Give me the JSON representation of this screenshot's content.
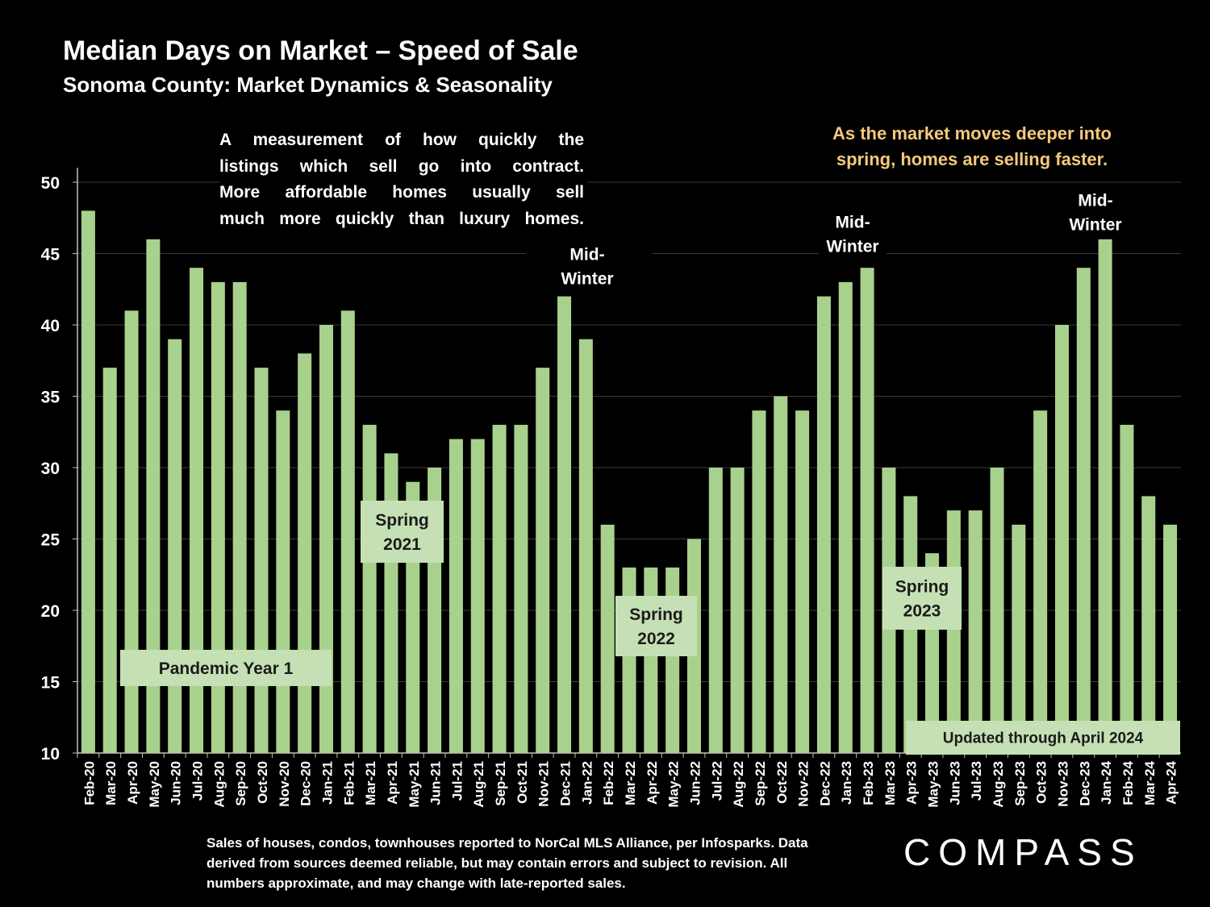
{
  "header": {
    "title": "Median Days on Market – Speed of Sale",
    "subtitle": "Sonoma County: Market Dynamics & Seasonality"
  },
  "description_lines": [
    "A measurement of how quickly the",
    "listings which sell go into contract.",
    "More affordable homes usually sell",
    "much more quickly than luxury homes."
  ],
  "note_lines": [
    "As the market moves deeper into",
    "spring, homes are selling faster."
  ],
  "footnote_lines": [
    "Sales of houses, condos, townhouses reported to NorCal MLS Alliance, per Infosparks. Data",
    "derived from sources deemed reliable, but may contain errors and subject to revision. All",
    "numbers approximate, and may change with late-reported sales."
  ],
  "logo": "COMPASS",
  "colors": {
    "bar": "#a9d18e",
    "label_box": "#c5e0b4",
    "note": "#f5c97a",
    "background": "#000000"
  },
  "chart_data": {
    "type": "bar",
    "title": "Median Days on Market – Speed of Sale",
    "ylim": [
      10,
      50
    ],
    "yticks": [
      10,
      15,
      20,
      25,
      30,
      35,
      40,
      45,
      50
    ],
    "grid": true,
    "categories": [
      "Feb-20",
      "Mar-20",
      "Apr-20",
      "May-20",
      "Jun-20",
      "Jul-20",
      "Aug-20",
      "Sep-20",
      "Oct-20",
      "Nov-20",
      "Dec-20",
      "Jan-21",
      "Feb-21",
      "Mar-21",
      "Apr-21",
      "May-21",
      "Jun-21",
      "Jul-21",
      "Aug-21",
      "Sep-21",
      "Oct-21",
      "Nov-21",
      "Dec-21",
      "Jan-22",
      "Feb-22",
      "Mar-22",
      "Apr-22",
      "May-22",
      "Jun-22",
      "Jul-22",
      "Aug-22",
      "Sep-22",
      "Oct-22",
      "Nov-22",
      "Dec-22",
      "Jan-23",
      "Feb-23",
      "Mar-23",
      "Apr-23",
      "May-23",
      "Jun-23",
      "Jul-23",
      "Aug-23",
      "Sep-23",
      "Oct-23",
      "Nov-23",
      "Dec-23",
      "Jan-24",
      "Feb-24",
      "Mar-24",
      "Apr-24"
    ],
    "values": [
      48,
      37,
      41,
      46,
      39,
      44,
      43,
      43,
      37,
      34,
      38,
      40,
      41,
      33,
      31,
      29,
      30,
      32,
      32,
      33,
      33,
      37,
      42,
      39,
      26,
      23,
      23,
      23,
      25,
      30,
      30,
      34,
      35,
      34,
      42,
      43,
      44,
      30,
      28,
      24,
      27,
      27,
      30,
      26,
      34,
      40,
      44,
      46,
      33,
      28,
      26
    ],
    "annotations": [
      {
        "id": "pandemic",
        "lines": [
          "Pandemic Year 1"
        ],
        "style": "box"
      },
      {
        "id": "spring21",
        "lines": [
          "Spring",
          "2021"
        ],
        "style": "box"
      },
      {
        "id": "spring22",
        "lines": [
          "Spring",
          "2022"
        ],
        "style": "box"
      },
      {
        "id": "spring23",
        "lines": [
          "Spring",
          "2023"
        ],
        "style": "box"
      },
      {
        "id": "updated",
        "lines": [
          "Updated through April 2024"
        ],
        "style": "box"
      },
      {
        "id": "midwinter22",
        "lines": [
          "Mid-",
          "Winter"
        ],
        "style": "text"
      },
      {
        "id": "midwinter23",
        "lines": [
          "Mid-",
          "Winter"
        ],
        "style": "text"
      },
      {
        "id": "midwinter24",
        "lines": [
          "Mid-",
          "Winter"
        ],
        "style": "text"
      }
    ]
  }
}
